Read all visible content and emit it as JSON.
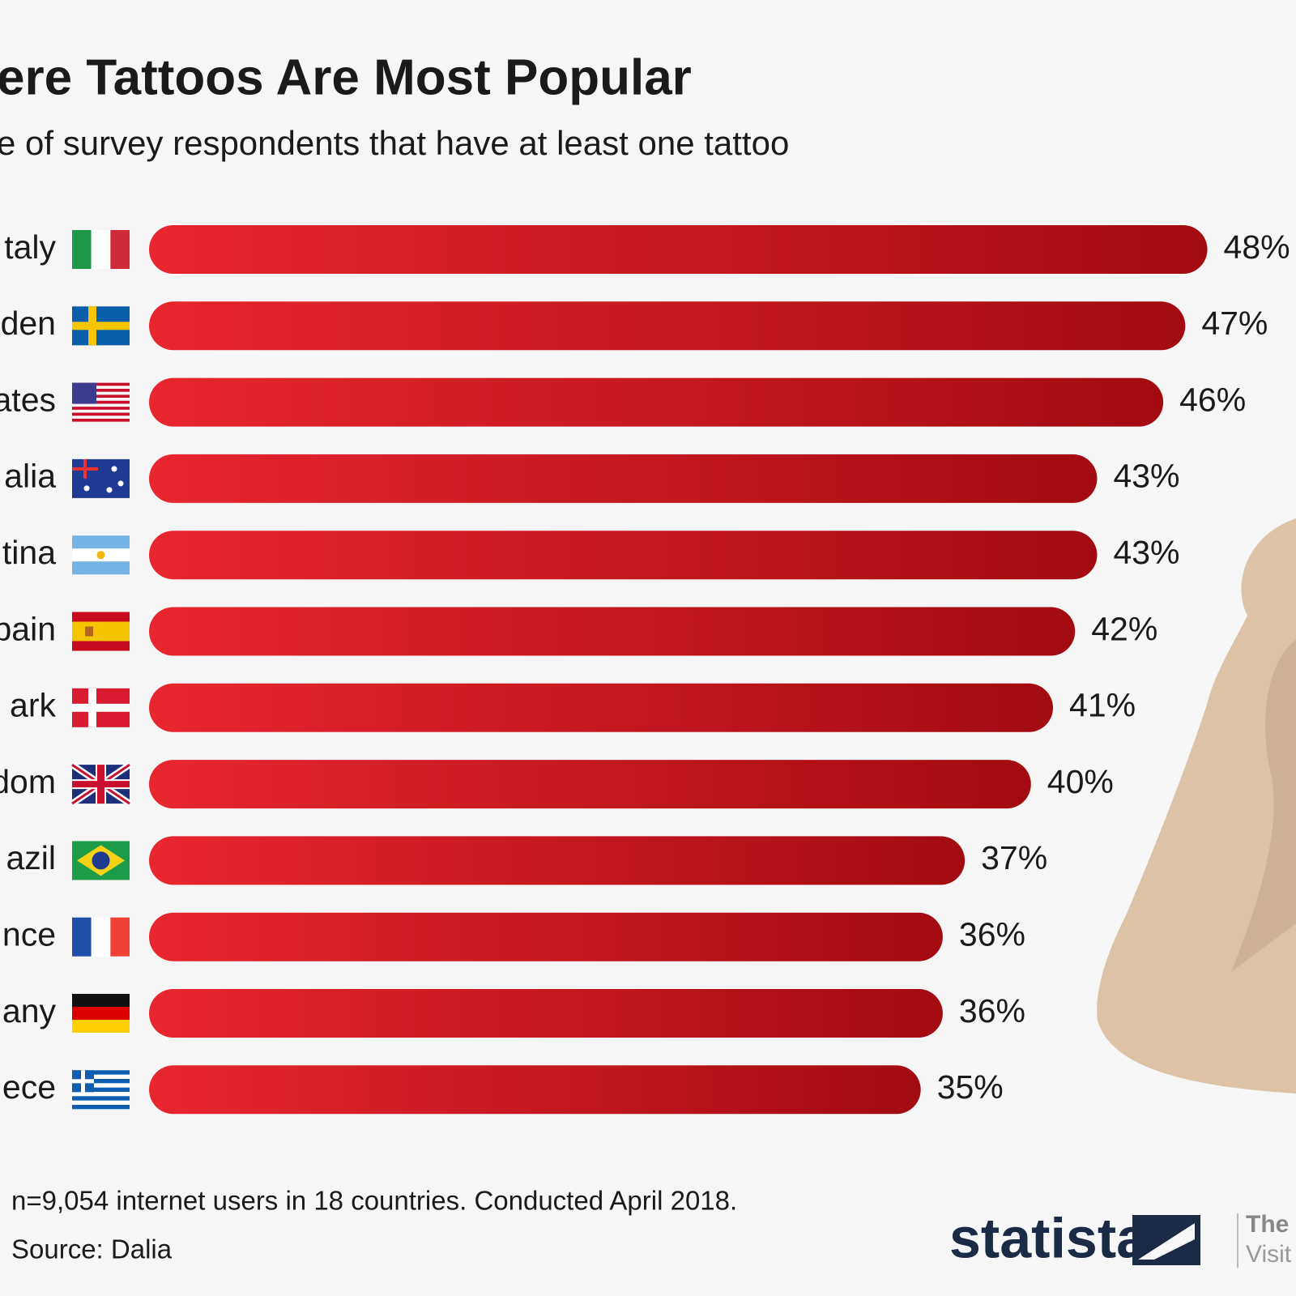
{
  "chart_data": {
    "type": "bar",
    "orientation": "horizontal",
    "title": "ere Tattoos Are Most Popular",
    "subtitle": "e of survey respondents that have at least one tattoo",
    "categories": [
      "taly",
      "den",
      "ates",
      "alia",
      "tina",
      "pain",
      "ark",
      "dom",
      "azil",
      "nce",
      "any",
      "ece"
    ],
    "values": [
      48,
      47,
      46,
      43,
      43,
      42,
      41,
      40,
      37,
      36,
      36,
      35
    ],
    "value_labels": [
      "48%",
      "47%",
      "46%",
      "43%",
      "43%",
      "42%",
      "41%",
      "40%",
      "37%",
      "36%",
      "36%",
      "35%"
    ],
    "color": "#d41a22",
    "footnote": "n=9,054 internet users in 18 countries. Conducted April 2018.",
    "source": "Source: Dalia",
    "brand": "statista",
    "side_text": [
      "The",
      "Visit"
    ]
  }
}
